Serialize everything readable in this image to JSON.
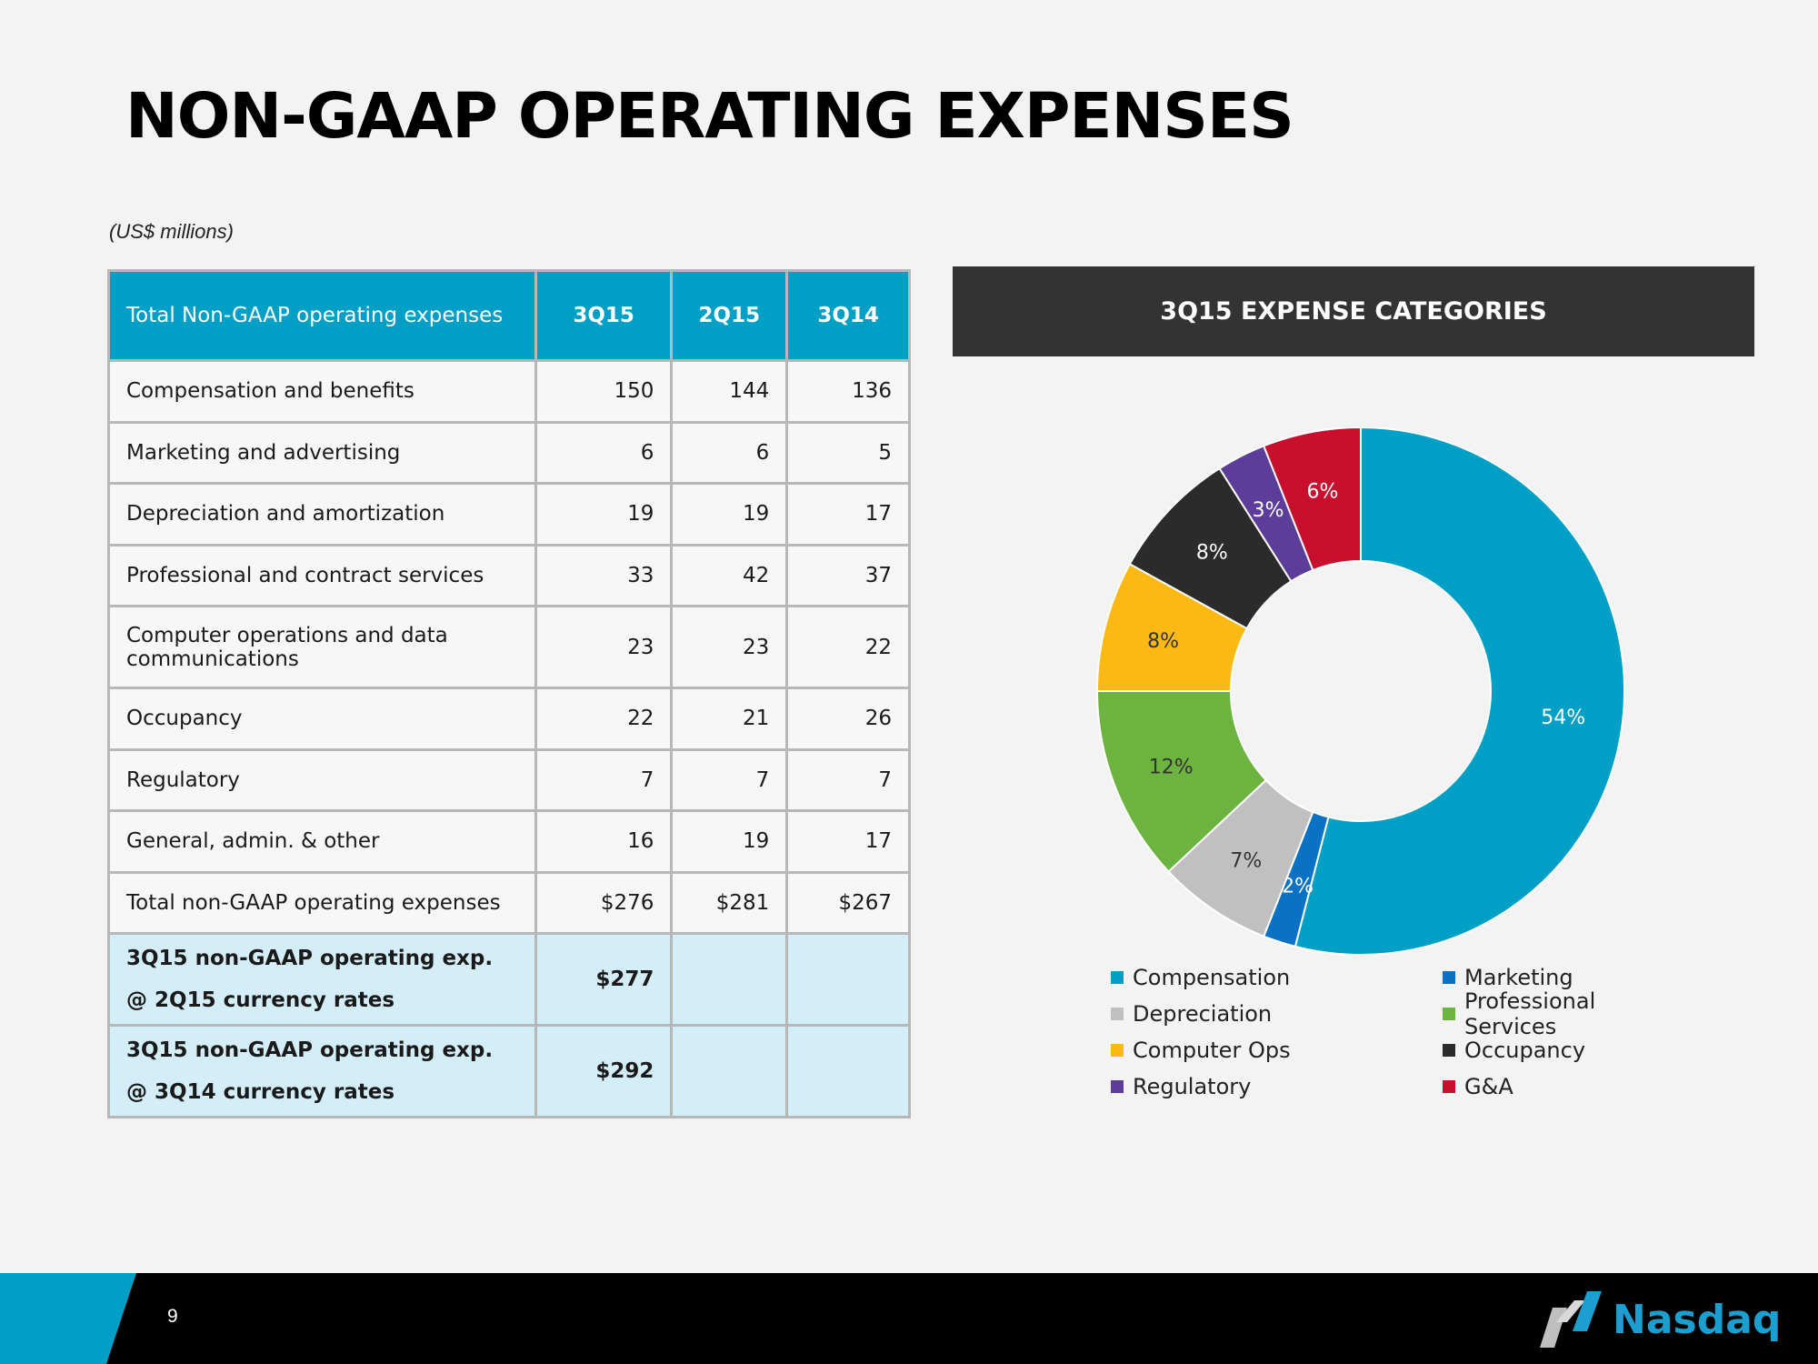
{
  "page": {
    "title": "NON-GAAP OPERATING EXPENSES",
    "units": "(US$ millions)",
    "page_number": "9",
    "logo_text": "Nasdaq"
  },
  "table": {
    "header": [
      "Total  Non-GAAP operating expenses",
      "3Q15",
      "2Q15",
      "3Q14"
    ],
    "rows": [
      {
        "label": "Compensation and benefits",
        "v": [
          "150",
          "144",
          "136"
        ]
      },
      {
        "label": "Marketing and advertising",
        "v": [
          "6",
          "6",
          "5"
        ]
      },
      {
        "label": "Depreciation and amortization",
        "v": [
          "19",
          "19",
          "17"
        ]
      },
      {
        "label": "Professional and contract services",
        "v": [
          "33",
          "42",
          "37"
        ]
      },
      {
        "label": "Computer operations and data communications",
        "v": [
          "23",
          "23",
          "22"
        ]
      },
      {
        "label": "Occupancy",
        "v": [
          "22",
          "21",
          "26"
        ]
      },
      {
        "label": "Regulatory",
        "v": [
          "7",
          "7",
          "7"
        ]
      },
      {
        "label": "General, admin. & other",
        "v": [
          "16",
          "19",
          "17"
        ]
      },
      {
        "label": "Total non-GAAP operating expenses",
        "v": [
          "$276",
          "$281",
          "$267"
        ]
      }
    ],
    "highlight_rows": [
      {
        "line1": "3Q15 non-GAAP operating exp.",
        "line2": "@ 2Q15 currency rates",
        "value": "$277"
      },
      {
        "line1": "3Q15 non-GAAP operating exp.",
        "line2": "@ 3Q14 currency rates",
        "value": "$292"
      }
    ]
  },
  "chart_data": {
    "type": "pie",
    "title": "3Q15 EXPENSE CATEGORIES",
    "donut": true,
    "categories": [
      "Compensation",
      "Marketing",
      "Depreciation",
      "Professional Services",
      "Computer Ops",
      "Occupancy",
      "Regulatory",
      "G&A"
    ],
    "values": [
      54,
      2,
      7,
      12,
      8,
      8,
      3,
      6
    ],
    "data_labels": [
      "54%",
      "2%",
      "7%",
      "12%",
      "8%",
      "8%",
      "3%",
      "6%"
    ],
    "colors": [
      "#00a0c6",
      "#0a72c4",
      "#c0c0c0",
      "#6db33f",
      "#fdb913",
      "#2b2b2b",
      "#5c3d99",
      "#c8102e"
    ],
    "label_colors": [
      "#ffffff",
      "#ffffff",
      "#333333",
      "#333333",
      "#333333",
      "#ffffff",
      "#ffffff",
      "#ffffff"
    ],
    "legend": "bottom",
    "legend_order": [
      "Compensation",
      "Marketing",
      "Depreciation",
      "Professional Services",
      "Computer Ops",
      "Occupancy",
      "Regulatory",
      "G&A"
    ]
  }
}
